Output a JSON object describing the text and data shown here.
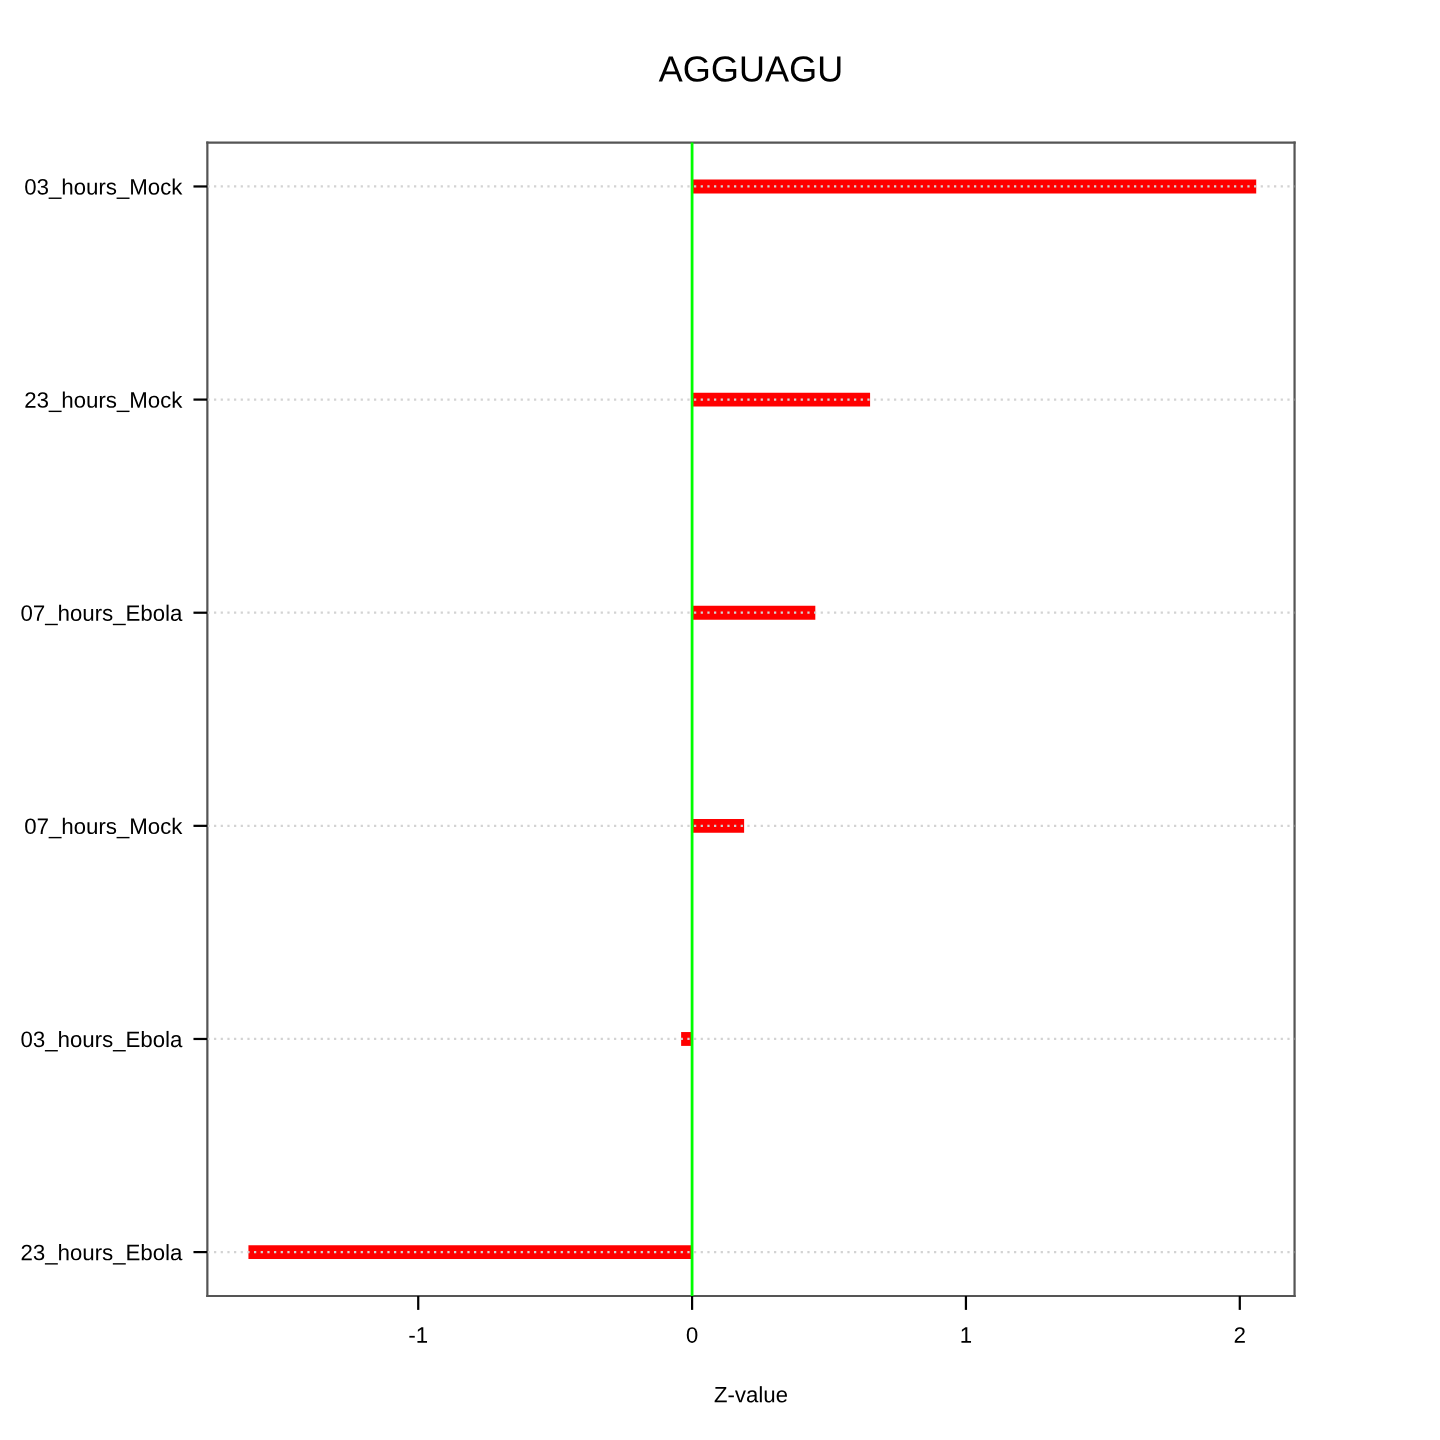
{
  "chart_data": {
    "type": "bar",
    "orientation": "horizontal",
    "title": "AGGUAGU",
    "xlabel": "Z-value",
    "categories": [
      "03_hours_Mock",
      "23_hours_Mock",
      "07_hours_Ebola",
      "07_hours_Mock",
      "03_hours_Ebola",
      "23_hours_Ebola"
    ],
    "values": [
      2.06,
      0.65,
      0.45,
      0.19,
      -0.04,
      -1.62
    ],
    "color": "#ff0000",
    "xlim": [
      -1.77,
      2.2
    ],
    "xticks": [
      -1,
      0,
      1,
      2
    ],
    "grid": "y",
    "ref_lines": [
      {
        "axis": "x",
        "value": 0,
        "color": "#00ff00"
      }
    ]
  }
}
